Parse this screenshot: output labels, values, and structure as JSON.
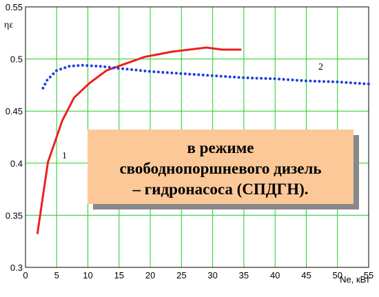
{
  "chart_data": {
    "type": "line",
    "y_label": "ηε",
    "x_label": "Ne, кВт",
    "annotation_lines": [
      "в режиме",
      "свободнопоршневого дизель",
      "– гидронасоса (СПДГН)."
    ],
    "curve_labels": [
      "1",
      "2"
    ],
    "series": [
      {
        "color": "#ee2020",
        "style": "solid",
        "x": [
          1.9,
          3.6,
          5.9,
          7.8,
          10.3,
          13,
          15.8,
          19.1,
          23.5,
          29,
          31.5,
          34.6
        ],
        "values": [
          0.332,
          0.401,
          0.441,
          0.463,
          0.477,
          0.489,
          0.495,
          0.502,
          0.507,
          0.511,
          0.509,
          0.509
        ]
      },
      {
        "color": "#1f3ee0",
        "style": "dotted",
        "x": [
          2.8,
          3.5,
          5,
          7,
          9,
          12,
          15,
          20,
          25,
          30,
          35,
          40,
          45,
          50,
          55
        ],
        "values": [
          0.472,
          0.48,
          0.489,
          0.493,
          0.494,
          0.493,
          0.491,
          0.488,
          0.486,
          0.484,
          0.482,
          0.481,
          0.479,
          0.478,
          0.476
        ]
      }
    ],
    "xlim": [
      0,
      55
    ],
    "xticks": [
      0,
      5,
      10,
      15,
      20,
      25,
      30,
      35,
      40,
      45,
      50,
      55
    ],
    "ylim": [
      0.3,
      0.55
    ],
    "yticks": [
      0.3,
      0.35,
      0.4,
      0.45,
      0.5,
      0.55
    ],
    "grid": true,
    "grid_color": "#22cc22"
  }
}
